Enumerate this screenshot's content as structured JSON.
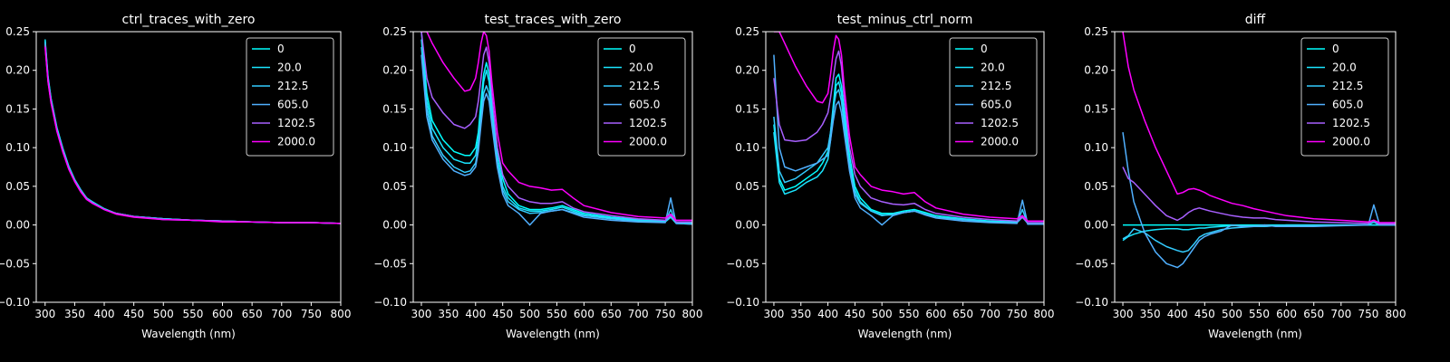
{
  "xlabel": "Wavelength (nm)",
  "x_ticks": [
    300,
    350,
    400,
    450,
    500,
    550,
    600,
    650,
    700,
    750,
    800
  ],
  "y_ticks": [
    -0.1,
    -0.05,
    0.0,
    0.05,
    0.1,
    0.15,
    0.2,
    0.25
  ],
  "x_tick_labels": [
    "300",
    "350",
    "400",
    "450",
    "500",
    "550",
    "600",
    "650",
    "700",
    "750",
    "800"
  ],
  "y_tick_labels": [
    "−0.10",
    "−0.05",
    "0.00",
    "0.05",
    "0.10",
    "0.15",
    "0.20",
    "0.25"
  ],
  "legend_labels": [
    "0",
    "20.0",
    "212.5",
    "605.0",
    "1202.5",
    "2000.0"
  ],
  "series_colors": [
    "#00ffff",
    "#1ae5ff",
    "#33ccff",
    "#50b0ff",
    "#a860ff",
    "#ff00ff"
  ],
  "chart_data": [
    {
      "type": "line",
      "title": "ctrl_traces_with_zero",
      "xlabel": "Wavelength (nm)",
      "xlim": [
        285,
        800
      ],
      "ylim": [
        -0.1,
        0.25
      ],
      "legend": "top-right",
      "x": [
        300,
        305,
        310,
        320,
        330,
        340,
        350,
        360,
        370,
        380,
        400,
        420,
        450,
        500,
        550,
        600,
        650,
        700,
        750,
        800
      ],
      "series": [
        {
          "name": "0",
          "values": [
            0.238,
            0.19,
            0.163,
            0.125,
            0.098,
            0.075,
            0.058,
            0.045,
            0.035,
            0.029,
            0.021,
            0.015,
            0.011,
            0.008,
            0.006,
            0.005,
            0.004,
            0.003,
            0.003,
            0.002
          ]
        },
        {
          "name": "20.0",
          "values": [
            0.24,
            0.192,
            0.164,
            0.126,
            0.099,
            0.076,
            0.059,
            0.046,
            0.035,
            0.03,
            0.021,
            0.015,
            0.011,
            0.008,
            0.006,
            0.005,
            0.004,
            0.003,
            0.003,
            0.002
          ]
        },
        {
          "name": "212.5",
          "values": [
            0.236,
            0.19,
            0.162,
            0.124,
            0.097,
            0.075,
            0.058,
            0.045,
            0.035,
            0.029,
            0.02,
            0.015,
            0.011,
            0.008,
            0.006,
            0.005,
            0.004,
            0.003,
            0.003,
            0.002
          ]
        },
        {
          "name": "605.0",
          "values": [
            0.234,
            0.188,
            0.16,
            0.123,
            0.096,
            0.074,
            0.057,
            0.044,
            0.034,
            0.029,
            0.02,
            0.015,
            0.011,
            0.008,
            0.006,
            0.005,
            0.004,
            0.003,
            0.003,
            0.002
          ]
        },
        {
          "name": "1202.5",
          "values": [
            0.232,
            0.186,
            0.159,
            0.122,
            0.095,
            0.073,
            0.057,
            0.044,
            0.034,
            0.028,
            0.02,
            0.015,
            0.011,
            0.007,
            0.006,
            0.005,
            0.004,
            0.003,
            0.003,
            0.002
          ]
        },
        {
          "name": "2000.0",
          "values": [
            0.23,
            0.185,
            0.158,
            0.121,
            0.094,
            0.072,
            0.056,
            0.043,
            0.033,
            0.028,
            0.02,
            0.014,
            0.01,
            0.007,
            0.006,
            0.004,
            0.004,
            0.003,
            0.003,
            0.002
          ]
        }
      ]
    },
    {
      "type": "line",
      "title": "test_traces_with_zero",
      "xlabel": "Wavelength (nm)",
      "xlim": [
        285,
        800
      ],
      "ylim": [
        -0.1,
        0.25
      ],
      "legend": "top-right",
      "x": [
        300,
        310,
        320,
        340,
        360,
        380,
        390,
        400,
        405,
        410,
        415,
        420,
        425,
        430,
        440,
        450,
        460,
        480,
        500,
        520,
        540,
        560,
        580,
        600,
        650,
        700,
        750,
        760,
        770,
        800
      ],
      "series": [
        {
          "name": "0",
          "values": [
            0.25,
            0.17,
            0.135,
            0.11,
            0.095,
            0.09,
            0.09,
            0.1,
            0.12,
            0.16,
            0.195,
            0.21,
            0.195,
            0.16,
            0.1,
            0.06,
            0.04,
            0.025,
            0.02,
            0.02,
            0.022,
            0.025,
            0.02,
            0.015,
            0.01,
            0.007,
            0.005,
            0.012,
            0.003,
            0.003
          ]
        },
        {
          "name": "20.0",
          "values": [
            0.24,
            0.16,
            0.125,
            0.1,
            0.085,
            0.08,
            0.08,
            0.09,
            0.11,
            0.15,
            0.185,
            0.2,
            0.185,
            0.15,
            0.09,
            0.05,
            0.035,
            0.022,
            0.018,
            0.018,
            0.02,
            0.023,
            0.018,
            0.013,
            0.009,
            0.006,
            0.004,
            0.01,
            0.002,
            0.002
          ]
        },
        {
          "name": "212.5",
          "values": [
            0.23,
            0.15,
            0.115,
            0.09,
            0.075,
            0.068,
            0.07,
            0.08,
            0.1,
            0.14,
            0.17,
            0.18,
            0.17,
            0.14,
            0.08,
            0.045,
            0.03,
            0.02,
            0.015,
            0.016,
            0.018,
            0.02,
            0.016,
            0.012,
            0.008,
            0.005,
            0.004,
            0.02,
            0.002,
            0.001
          ]
        },
        {
          "name": "605.0",
          "values": [
            0.22,
            0.14,
            0.11,
            0.085,
            0.07,
            0.064,
            0.066,
            0.075,
            0.095,
            0.13,
            0.16,
            0.17,
            0.16,
            0.13,
            0.075,
            0.04,
            0.025,
            0.015,
            0.0,
            0.015,
            0.018,
            0.02,
            0.015,
            0.01,
            0.006,
            0.004,
            0.003,
            0.035,
            0.002,
            0.001
          ]
        },
        {
          "name": "1202.5",
          "values": [
            0.25,
            0.19,
            0.165,
            0.145,
            0.13,
            0.125,
            0.13,
            0.14,
            0.16,
            0.19,
            0.22,
            0.23,
            0.21,
            0.17,
            0.1,
            0.065,
            0.05,
            0.035,
            0.03,
            0.028,
            0.028,
            0.03,
            0.022,
            0.017,
            0.012,
            0.008,
            0.006,
            0.012,
            0.004,
            0.004
          ]
        },
        {
          "name": "2000.0",
          "values": [
            0.25,
            0.25,
            0.235,
            0.21,
            0.19,
            0.173,
            0.175,
            0.19,
            0.21,
            0.235,
            0.25,
            0.245,
            0.225,
            0.185,
            0.12,
            0.08,
            0.07,
            0.055,
            0.05,
            0.048,
            0.045,
            0.046,
            0.035,
            0.025,
            0.016,
            0.011,
            0.009,
            0.014,
            0.006,
            0.006
          ]
        }
      ]
    },
    {
      "type": "line",
      "title": "test_minus_ctrl_norm",
      "xlabel": "Wavelength (nm)",
      "xlim": [
        285,
        800
      ],
      "ylim": [
        -0.1,
        0.25
      ],
      "legend": "top-right",
      "x": [
        300,
        310,
        320,
        340,
        360,
        380,
        390,
        400,
        405,
        410,
        415,
        420,
        425,
        430,
        440,
        450,
        460,
        480,
        500,
        520,
        540,
        560,
        580,
        600,
        650,
        700,
        750,
        760,
        770,
        800
      ],
      "series": [
        {
          "name": "0",
          "values": [
            0.13,
            0.06,
            0.045,
            0.05,
            0.06,
            0.07,
            0.08,
            0.095,
            0.12,
            0.155,
            0.19,
            0.195,
            0.18,
            0.15,
            0.09,
            0.05,
            0.035,
            0.02,
            0.015,
            0.015,
            0.018,
            0.02,
            0.016,
            0.012,
            0.008,
            0.005,
            0.004,
            0.012,
            0.002,
            0.002
          ]
        },
        {
          "name": "20.0",
          "values": [
            0.12,
            0.055,
            0.04,
            0.045,
            0.055,
            0.062,
            0.07,
            0.085,
            0.11,
            0.145,
            0.18,
            0.185,
            0.17,
            0.14,
            0.08,
            0.045,
            0.03,
            0.018,
            0.013,
            0.013,
            0.016,
            0.018,
            0.014,
            0.01,
            0.007,
            0.004,
            0.003,
            0.01,
            0.002,
            0.001
          ]
        },
        {
          "name": "212.5",
          "values": [
            0.14,
            0.07,
            0.055,
            0.06,
            0.07,
            0.08,
            0.09,
            0.1,
            0.12,
            0.15,
            0.17,
            0.175,
            0.16,
            0.13,
            0.075,
            0.04,
            0.028,
            0.018,
            0.012,
            0.014,
            0.016,
            0.018,
            0.014,
            0.01,
            0.007,
            0.004,
            0.003,
            0.02,
            0.001,
            0.001
          ]
        },
        {
          "name": "605.0",
          "values": [
            0.22,
            0.1,
            0.075,
            0.07,
            0.075,
            0.08,
            0.085,
            0.09,
            0.11,
            0.135,
            0.155,
            0.16,
            0.145,
            0.12,
            0.07,
            0.035,
            0.022,
            0.012,
            0.0,
            0.012,
            0.016,
            0.018,
            0.013,
            0.009,
            0.005,
            0.003,
            0.002,
            0.032,
            0.001,
            0.001
          ]
        },
        {
          "name": "1202.5",
          "values": [
            0.19,
            0.13,
            0.11,
            0.108,
            0.11,
            0.12,
            0.13,
            0.145,
            0.165,
            0.19,
            0.215,
            0.225,
            0.205,
            0.165,
            0.1,
            0.065,
            0.05,
            0.035,
            0.03,
            0.027,
            0.026,
            0.028,
            0.02,
            0.015,
            0.01,
            0.007,
            0.005,
            0.01,
            0.003,
            0.003
          ]
        },
        {
          "name": "2000.0",
          "values": [
            0.25,
            0.25,
            0.235,
            0.205,
            0.18,
            0.16,
            0.158,
            0.17,
            0.195,
            0.225,
            0.245,
            0.24,
            0.22,
            0.18,
            0.115,
            0.075,
            0.065,
            0.05,
            0.045,
            0.043,
            0.04,
            0.042,
            0.03,
            0.022,
            0.014,
            0.01,
            0.008,
            0.012,
            0.005,
            0.005
          ]
        }
      ]
    },
    {
      "type": "line",
      "title": "diff",
      "xlabel": "Wavelength (nm)",
      "xlim": [
        285,
        800
      ],
      "ylim": [
        -0.1,
        0.25
      ],
      "legend": "top-right",
      "x": [
        300,
        310,
        320,
        340,
        360,
        380,
        400,
        410,
        420,
        430,
        440,
        450,
        460,
        480,
        500,
        520,
        540,
        560,
        580,
        600,
        650,
        700,
        750,
        760,
        770,
        800
      ],
      "series": [
        {
          "name": "0",
          "values": [
            0,
            0,
            0,
            0,
            0,
            0,
            0,
            0,
            0,
            0,
            0,
            0,
            0,
            0,
            0,
            0,
            0,
            0,
            0,
            0,
            0,
            0,
            0,
            0,
            0,
            0
          ]
        },
        {
          "name": "20.0",
          "values": [
            -0.02,
            -0.015,
            -0.012,
            -0.008,
            -0.006,
            -0.005,
            -0.005,
            -0.006,
            -0.006,
            -0.005,
            -0.004,
            -0.004,
            -0.003,
            -0.002,
            -0.001,
            -0.001,
            -0.001,
            -0.001,
            -0.001,
            0,
            0,
            0,
            0,
            0,
            0,
            0
          ]
        },
        {
          "name": "212.5",
          "values": [
            -0.018,
            -0.014,
            -0.005,
            -0.01,
            -0.02,
            -0.028,
            -0.033,
            -0.035,
            -0.033,
            -0.025,
            -0.016,
            -0.012,
            -0.01,
            -0.006,
            -0.004,
            -0.003,
            -0.002,
            -0.002,
            -0.001,
            -0.001,
            -0.001,
            0,
            0,
            0.004,
            0,
            0
          ]
        },
        {
          "name": "605.0",
          "values": [
            0.12,
            0.07,
            0.03,
            -0.01,
            -0.035,
            -0.05,
            -0.055,
            -0.05,
            -0.04,
            -0.03,
            -0.02,
            -0.015,
            -0.012,
            -0.008,
            0.0,
            -0.002,
            -0.002,
            0.0,
            -0.002,
            -0.002,
            -0.002,
            -0.001,
            0.0,
            0.026,
            0.002,
            0.002
          ]
        },
        {
          "name": "1202.5",
          "values": [
            0.075,
            0.06,
            0.055,
            0.04,
            0.025,
            0.012,
            0.006,
            0.01,
            0.016,
            0.02,
            0.022,
            0.02,
            0.018,
            0.015,
            0.012,
            0.01,
            0.009,
            0.009,
            0.007,
            0.006,
            0.004,
            0.003,
            0.002,
            0.006,
            0.001,
            0.001
          ]
        },
        {
          "name": "2000.0",
          "values": [
            0.25,
            0.205,
            0.175,
            0.135,
            0.1,
            0.07,
            0.04,
            0.042,
            0.046,
            0.047,
            0.045,
            0.042,
            0.038,
            0.033,
            0.028,
            0.025,
            0.021,
            0.018,
            0.015,
            0.012,
            0.008,
            0.006,
            0.004,
            0.006,
            0.003,
            0.003
          ]
        }
      ]
    }
  ]
}
